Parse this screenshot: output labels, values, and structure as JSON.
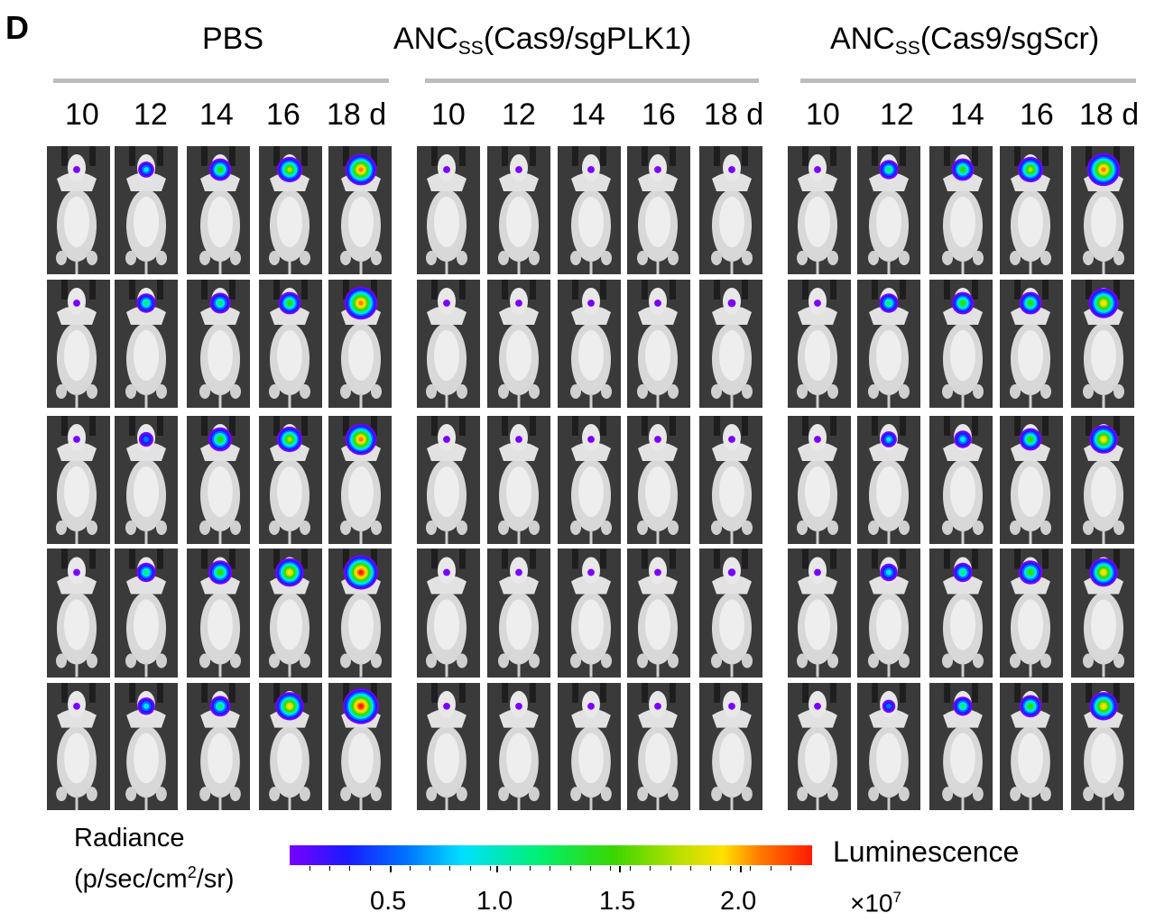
{
  "panel_label": "D",
  "groups": [
    {
      "name": "PBS",
      "name_sub": "",
      "name_rest": ""
    },
    {
      "name": "ANC",
      "name_sub": "SS",
      "name_rest": "(Cas9/sgPLK1)"
    },
    {
      "name": "ANC",
      "name_sub": "SS",
      "name_rest": "(Cas9/sgScr)"
    }
  ],
  "days": [
    "10",
    "12",
    "14",
    "16",
    "18 d"
  ],
  "signal_levels": [
    [
      [
        0.05,
        0.35,
        0.55,
        0.65,
        0.85
      ],
      [
        0.05,
        0.45,
        0.5,
        0.55,
        0.9
      ],
      [
        0.05,
        0.3,
        0.6,
        0.65,
        0.85
      ],
      [
        0.05,
        0.45,
        0.6,
        0.75,
        0.95
      ],
      [
        0.05,
        0.4,
        0.5,
        0.75,
        1.0
      ]
    ],
    [
      [
        0.05,
        0.05,
        0.05,
        0.05,
        0.05
      ],
      [
        0.05,
        0.05,
        0.05,
        0.05,
        0.08
      ],
      [
        0.05,
        0.05,
        0.05,
        0.05,
        0.05
      ],
      [
        0.05,
        0.05,
        0.05,
        0.05,
        0.07
      ],
      [
        0.05,
        0.05,
        0.05,
        0.05,
        0.05
      ]
    ],
    [
      [
        0.05,
        0.45,
        0.55,
        0.65,
        0.9
      ],
      [
        0.05,
        0.45,
        0.55,
        0.55,
        0.8
      ],
      [
        0.05,
        0.35,
        0.4,
        0.55,
        0.75
      ],
      [
        0.05,
        0.4,
        0.45,
        0.6,
        0.75
      ],
      [
        0.05,
        0.25,
        0.45,
        0.55,
        0.75
      ]
    ]
  ],
  "colorbar": {
    "title_line1": "Radiance",
    "title_line2_pre": "(p/sec/cm",
    "title_line2_sup": "2",
    "title_line2_post": "/sr)",
    "ticks": [
      "0.5",
      "1.0",
      "1.5",
      "2.0"
    ],
    "label": "Luminescence",
    "exponent_pre": "×10",
    "exponent_sup": "7",
    "colors": [
      "#7a00ff",
      "#1a1aff",
      "#0070ff",
      "#00e0ff",
      "#00f070",
      "#3ad600",
      "#b5e000",
      "#ffe000",
      "#ff7a00",
      "#ff1a00"
    ]
  }
}
